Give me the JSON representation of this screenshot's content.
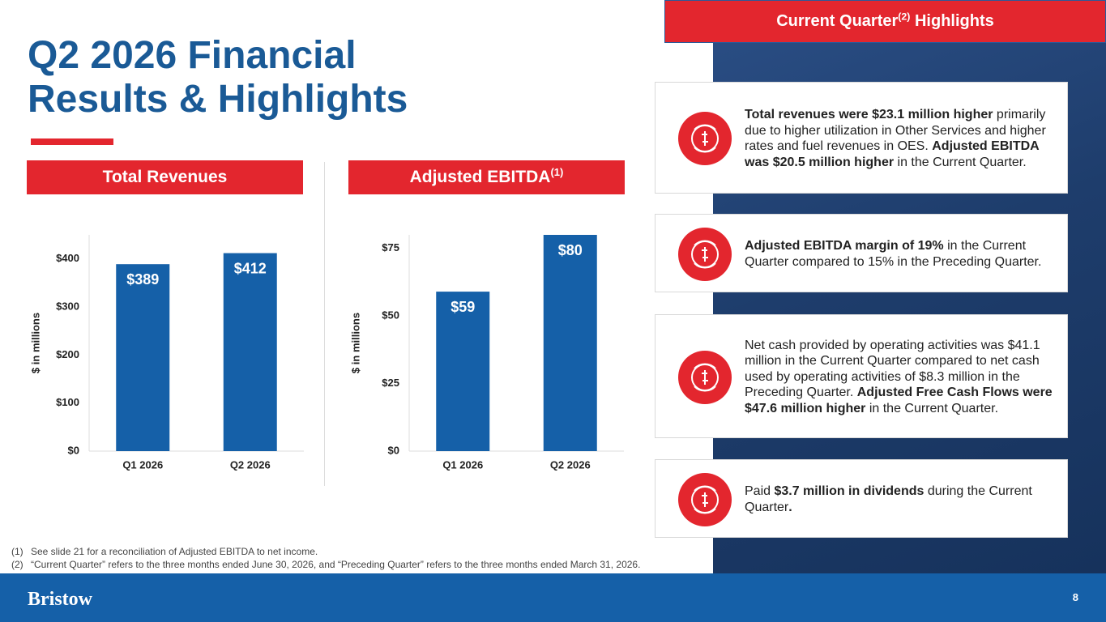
{
  "header": {
    "title_lines": [
      "Q2 2026 Financial",
      "Results & Highlights"
    ]
  },
  "chart_data": [
    {
      "type": "bar",
      "title": "Total Revenues",
      "y_label": "$ in millions",
      "categories": [
        "Q1 2026",
        "Q2 2026"
      ],
      "values": [
        389,
        412
      ],
      "value_labels": [
        "$389",
        "$412"
      ],
      "color": "#1560a8",
      "ylim": [
        0,
        450
      ],
      "yticks": [
        {
          "value": 0,
          "label": "$0"
        },
        {
          "value": 100,
          "label": "$100"
        },
        {
          "value": 200,
          "label": "$200"
        },
        {
          "value": 300,
          "label": "$300"
        },
        {
          "value": 400,
          "label": "$400"
        }
      ],
      "grid": false
    },
    {
      "type": "bar",
      "title": "Adjusted EBITDA",
      "title_note": "(1)",
      "y_label": "$ in millions",
      "categories": [
        "Q1 2026",
        "Q2 2026"
      ],
      "values": [
        59,
        80
      ],
      "value_labels": [
        "$59",
        "$80"
      ],
      "color": "#1560a8",
      "ylim": [
        0,
        80
      ],
      "yticks": [
        {
          "value": 0,
          "label": "$0"
        },
        {
          "value": 25,
          "label": "$25"
        },
        {
          "value": 50,
          "label": "$50"
        },
        {
          "value": 75,
          "label": "$75"
        }
      ],
      "grid": false
    }
  ],
  "highlights": {
    "title": "Current Quarter",
    "title_note": "(2)",
    "title_suffix": "Highlights",
    "items": [
      [
        {
          "text": "Total revenues were $23.1 million higher",
          "bold": true
        },
        {
          "text": " primarily due to higher utilization in Other Services and higher rates and fuel revenues in OES. "
        },
        {
          "text": "Adjusted EBITDA was $20.5 million higher",
          "bold": true
        },
        {
          "text": " in the Current Quarter."
        }
      ],
      [
        {
          "text": "Adjusted EBITDA margin of 19%",
          "bold": true
        },
        {
          "text": " in the Current Quarter compared to 15% in the Preceding Quarter."
        }
      ],
      [
        {
          "text": "Net cash provided by operating activities was $41.1 million in the Current Quarter compared to net cash used by operating activities of $8.3 million in the Preceding Quarter. "
        },
        {
          "text": "Adjusted Free Cash Flows were $47.6 million higher",
          "bold": true
        },
        {
          "text": " in the Current Quarter."
        }
      ],
      [
        {
          "text": "Paid "
        },
        {
          "text": "$3.7 million in dividends",
          "bold": true
        },
        {
          "text": " during the Current Quarter"
        },
        {
          "text": ".",
          "bold": true
        }
      ]
    ]
  },
  "footnotes": [
    {
      "marker": "(1)",
      "text": "See slide 21 for a reconciliation of Adjusted EBITDA to net income."
    },
    {
      "marker": "(2)",
      "text": "“Current Quarter” refers to the three months ended June 30, 2026, and “Preceding Quarter” refers to the three months ended March 31, 2026."
    }
  ],
  "footer": {
    "logo": "Bristow",
    "page": "8"
  }
}
